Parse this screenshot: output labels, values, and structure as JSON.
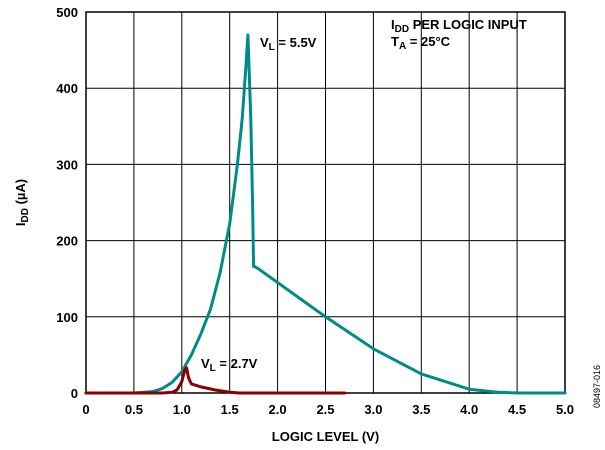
{
  "chart_data": {
    "type": "line",
    "xlabel": "LOGIC LEVEL (V)",
    "ylabel": {
      "main": "I",
      "sub": "DD",
      "rest": " (µA)"
    },
    "xlim": [
      0,
      5.0
    ],
    "ylim": [
      0,
      500
    ],
    "x_ticks": [
      "0",
      "0.5",
      "1.0",
      "1.5",
      "2.0",
      "2.5",
      "3.0",
      "3.5",
      "4.0",
      "4.5",
      "5.0"
    ],
    "y_ticks": [
      "0",
      "100",
      "200",
      "300",
      "400",
      "500"
    ],
    "grid": true,
    "annotation": {
      "line1_main": "I",
      "line1_sub": "DD",
      "line1_rest": " PER LOGIC INPUT",
      "line2_main": "T",
      "line2_sub": "A",
      "line2_rest": " = 25°C"
    },
    "figure_code": "08497-016",
    "series": [
      {
        "label_main": "V",
        "label_sub": "L",
        "label_rest": " = 5.5V",
        "color": "#008B8B",
        "x": [
          0,
          0.5,
          0.7,
          0.8,
          0.9,
          1.0,
          1.1,
          1.2,
          1.3,
          1.4,
          1.5,
          1.58,
          1.63,
          1.67,
          1.69,
          1.72,
          1.74,
          1.75,
          1.76,
          1.8,
          2.0,
          2.5,
          3.0,
          3.5,
          4.0,
          4.3,
          4.5,
          4.6,
          5.0
        ],
        "y": [
          0,
          0,
          2,
          6,
          14,
          28,
          50,
          78,
          110,
          158,
          222,
          300,
          360,
          430,
          470,
          360,
          240,
          166,
          166,
          163,
          145,
          100,
          58,
          25,
          5,
          1,
          0,
          0,
          0
        ]
      },
      {
        "label_main": "V",
        "label_sub": "L",
        "label_rest": " = 2.7V",
        "color": "#8B0000",
        "x": [
          0,
          0.8,
          0.9,
          0.95,
          1.0,
          1.03,
          1.05,
          1.07,
          1.1,
          1.2,
          1.35,
          1.5,
          1.6,
          2.0,
          2.7
        ],
        "y": [
          0,
          0,
          1,
          4,
          15,
          30,
          33,
          20,
          12,
          8,
          4,
          1,
          0,
          0,
          0
        ]
      }
    ]
  }
}
